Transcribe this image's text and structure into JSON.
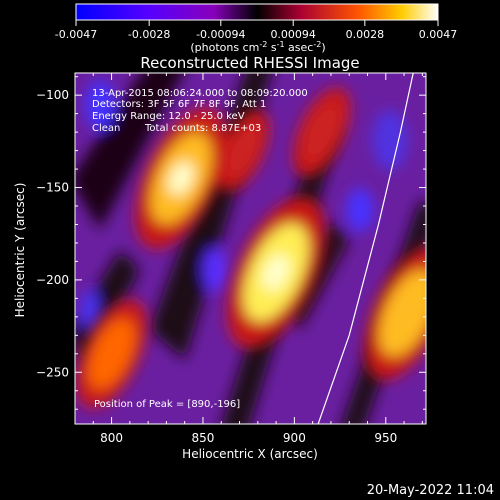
{
  "colorbar": {
    "ticks": [
      "-0.0047",
      "-0.0028",
      "-0.00094",
      "0.00094",
      "0.0028",
      "0.0047"
    ],
    "tick_values": [
      -0.0047,
      -0.0028,
      -0.00094,
      0.00094,
      0.0028,
      0.0047
    ],
    "range": [
      -0.0047,
      0.0047
    ],
    "unit_main": "(photons cm",
    "unit_sup1": "-2",
    "unit_mid": " s",
    "unit_sup2": "-1",
    "unit_mid2": " asec",
    "unit_sup3": "-2",
    "unit_end": ")"
  },
  "chart_data": {
    "type": "heatmap",
    "title": "Reconstructed RHESSI Image",
    "xlabel": "Heliocentric X (arcsec)",
    "ylabel": "Heliocentric Y (arcsec)",
    "xlim": [
      780,
      972
    ],
    "ylim": [
      -278,
      -88
    ],
    "xticks": [
      800,
      850,
      900,
      950
    ],
    "yticks": [
      -100,
      -150,
      -200,
      -250
    ],
    "colormap": "black-blue-purple-red-orange-yellow-white",
    "peak_position": [
      890,
      -196
    ],
    "annotations": {
      "time": "13-Apr-2015 08:06:24.000 to 08:09:20.000",
      "detectors": "Detectors: 3F 5F 6F 7F 8F 9F, Att 1",
      "energy": "Energy Range: 12.0 - 25.0 keV",
      "clean": "Clean",
      "counts": "Total counts: 8.87E+03",
      "peak": "Position of Peak = [890,-196]"
    },
    "limb_curve": [
      [
        913,
        -278
      ],
      [
        930,
        -230
      ],
      [
        946,
        -170
      ],
      [
        958,
        -120
      ],
      [
        965,
        -88
      ]
    ],
    "sources": [
      {
        "x": 838,
        "y": -145,
        "value": 0.0042
      },
      {
        "x": 890,
        "y": -196,
        "value": 0.0047
      },
      {
        "x": 962,
        "y": -218,
        "value": 0.0038
      },
      {
        "x": 800,
        "y": -240,
        "value": 0.0026
      },
      {
        "x": 872,
        "y": -130,
        "value": 0.0012
      },
      {
        "x": 915,
        "y": -120,
        "value": 0.0016
      }
    ]
  },
  "footer": {
    "timestamp": "20-May-2022 11:04"
  }
}
